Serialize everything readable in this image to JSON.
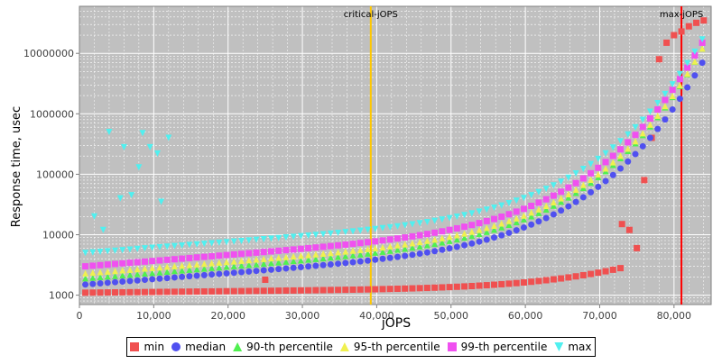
{
  "chart_data": {
    "type": "scatter",
    "title": "",
    "xlabel": "jOPS",
    "ylabel": "Response time, usec",
    "xlim": [
      0,
      85000
    ],
    "ylim": [
      700,
      60000000
    ],
    "yscale": "log",
    "x_ticks": [
      0,
      10000,
      20000,
      30000,
      40000,
      50000,
      60000,
      70000,
      80000
    ],
    "x_tick_labels": [
      "0",
      "10,000",
      "20,000",
      "30,000",
      "40,000",
      "50,000",
      "60,000",
      "70,000",
      "80,000"
    ],
    "y_ticks": [
      1000,
      10000,
      100000,
      1000000,
      10000000
    ],
    "y_tick_labels": [
      "1000",
      "10000",
      "100000",
      "1000000",
      "10000000"
    ],
    "grid": true,
    "legend_position": "bottom",
    "annotations": [
      {
        "label": "critical-jOPS",
        "x": 39200,
        "color": "#ffc800"
      },
      {
        "label": "max-jOPS",
        "x": 81000,
        "color": "#ff0000"
      }
    ],
    "series": [
      {
        "name": "min",
        "marker": "square",
        "color": "#f05050",
        "x_start": 800,
        "x_step": 1000,
        "y_start": 1100,
        "y_end": 2800,
        "n": 73,
        "spikes": [
          {
            "x": 25000,
            "y": 1800
          },
          {
            "x": 73000,
            "y": 15000
          },
          {
            "x": 74000,
            "y": 12000
          },
          {
            "x": 75000,
            "y": 6000
          },
          {
            "x": 76000,
            "y": 80000
          },
          {
            "x": 77000,
            "y": 400000
          },
          {
            "x": 78000,
            "y": 8000000
          },
          {
            "x": 79000,
            "y": 15000000
          },
          {
            "x": 80000,
            "y": 20000000
          },
          {
            "x": 81000,
            "y": 23000000
          },
          {
            "x": 82000,
            "y": 28000000
          },
          {
            "x": 83000,
            "y": 32000000
          },
          {
            "x": 84000,
            "y": 35000000
          }
        ]
      },
      {
        "name": "median",
        "marker": "circle",
        "color": "#5050f0",
        "x_start": 800,
        "x_step": 1000,
        "y_start": 1500,
        "y_end": 7000000,
        "n": 84
      },
      {
        "name": "90-th percentile",
        "marker": "triangle",
        "color": "#50f050",
        "x_start": 800,
        "x_step": 1000,
        "y_start": 1900,
        "y_end": 12000000,
        "n": 84
      },
      {
        "name": "95-th percentile",
        "marker": "triangle",
        "color": "#f0f050",
        "x_start": 800,
        "x_step": 1000,
        "y_start": 2300,
        "y_end": 12000000,
        "n": 84
      },
      {
        "name": "99-th percentile",
        "marker": "square",
        "color": "#f050f0",
        "x_start": 800,
        "x_step": 1000,
        "y_start": 3000,
        "y_end": 15000000,
        "n": 84
      },
      {
        "name": "max",
        "marker": "triangle-down",
        "color": "#50f0f0",
        "x_start": 800,
        "x_step": 1000,
        "y_start": 5000,
        "y_end": 17000000,
        "n": 84,
        "outliers": [
          {
            "x": 2000,
            "y": 20000
          },
          {
            "x": 3200,
            "y": 12000
          },
          {
            "x": 4000,
            "y": 500000
          },
          {
            "x": 5500,
            "y": 40000
          },
          {
            "x": 6000,
            "y": 280000
          },
          {
            "x": 7000,
            "y": 45000
          },
          {
            "x": 8000,
            "y": 130000
          },
          {
            "x": 8500,
            "y": 480000
          },
          {
            "x": 9500,
            "y": 280000
          },
          {
            "x": 10500,
            "y": 220000
          },
          {
            "x": 11000,
            "y": 35000
          },
          {
            "x": 12000,
            "y": 400000
          }
        ]
      }
    ]
  },
  "legend": {
    "items": [
      {
        "label": "min",
        "color": "#f05050",
        "shape": "square"
      },
      {
        "label": "median",
        "color": "#5050f0",
        "shape": "circle"
      },
      {
        "label": "90-th percentile",
        "color": "#50f050",
        "shape": "triangle"
      },
      {
        "label": "95-th percentile",
        "color": "#f0f050",
        "shape": "triangle"
      },
      {
        "label": "99-th percentile",
        "color": "#f050f0",
        "shape": "square"
      },
      {
        "label": "max",
        "color": "#50f0f0",
        "shape": "triangle-down"
      }
    ]
  }
}
